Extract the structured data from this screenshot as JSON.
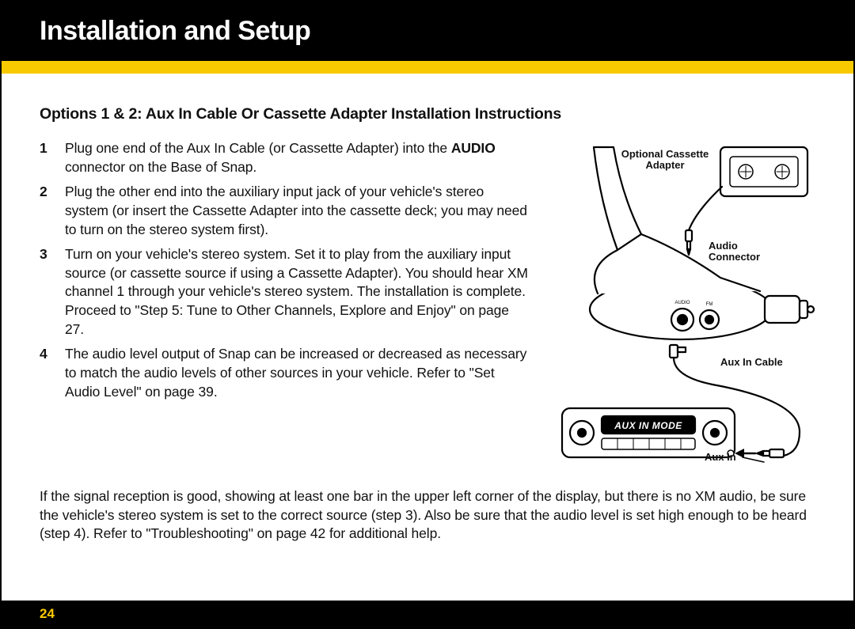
{
  "header": {
    "title": "Installation and Setup",
    "bg_color": "#000000",
    "text_color": "#ffffff",
    "accent_color": "#f9c900"
  },
  "subheading": "Options 1 & 2: Aux In Cable Or Cassette Adapter Installation Instructions",
  "steps": [
    {
      "num": "1",
      "html": "Plug one end of the Aux In Cable (or Cassette Adapter) into the <b>AUDIO</b> connector on the Base of Snap."
    },
    {
      "num": "2",
      "html": "Plug the other end into the auxiliary input jack of your vehicle's stereo system (or insert the Cassette Adapter into the cassette deck; you may need to turn on the stereo system first)."
    },
    {
      "num": "3",
      "html": "Turn on your vehicle's stereo system. Set it to play from the auxiliary input source (or cassette source if using a Cassette Adapter). You should hear XM channel 1 through your vehicle's stereo system. The installation is complete. Proceed to \"Step 5: Tune to Other Channels, Explore and Enjoy\" on page 27."
    },
    {
      "num": "4",
      "html": "The audio level output of Snap can be increased or decreased as necessary to match the audio levels of other sources in your vehicle. Refer to \"Set Audio Level\" on page 39."
    }
  ],
  "after_paragraph": "If the signal reception is good, showing at least one bar in the upper left corner of the display, but there is no XM audio, be sure the vehicle's stereo system is set to the correct source (step 3). Also be sure that the audio level is set high enough to be heard (step 4). Refer to \"Troubleshooting\" on page 42 for additional help.",
  "diagram": {
    "labels": {
      "cassette": "Optional Cassette\nAdapter",
      "audio_conn": "Audio\nConnector",
      "aux_cable": "Aux In Cable",
      "aux_in": "Aux In",
      "stereo_display": "AUX IN MODE",
      "port_audio": "AUDIO",
      "port_fm": "FM"
    },
    "style": {
      "stroke": "#000000",
      "stroke_width": 2.2,
      "fill": "#ffffff",
      "label_fontsize": 13,
      "label_weight": 700,
      "tiny_fontsize": 6
    }
  },
  "page_number": "24"
}
